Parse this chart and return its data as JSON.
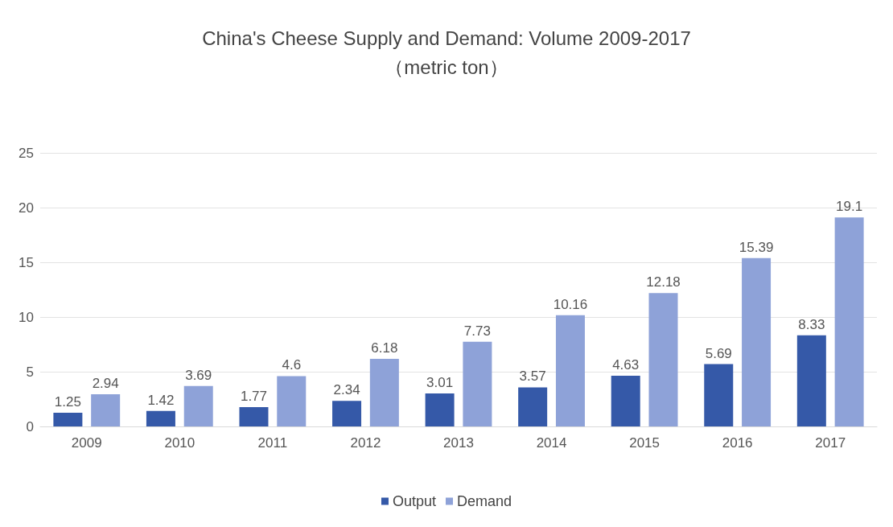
{
  "chart_data": {
    "type": "bar",
    "title": "China's Cheese Supply and Demand: Volume 2009-2017",
    "subtitle": "（metric ton）",
    "categories": [
      "2009",
      "2010",
      "2011",
      "2012",
      "2013",
      "2014",
      "2015",
      "2016",
      "2017"
    ],
    "series": [
      {
        "name": "Output",
        "color": "#3559a8",
        "values": [
          1.25,
          1.42,
          1.77,
          2.34,
          3.01,
          3.57,
          4.63,
          5.69,
          8.33
        ]
      },
      {
        "name": "Demand",
        "color": "#8ea2d8",
        "values": [
          2.94,
          3.69,
          4.6,
          6.18,
          7.73,
          10.16,
          12.18,
          15.39,
          19.1
        ]
      }
    ],
    "ylim": [
      0,
      25
    ],
    "yticks": [
      0,
      5,
      10,
      15,
      20,
      25
    ],
    "grid": "y",
    "legend": "bottom",
    "data_labels": true
  }
}
